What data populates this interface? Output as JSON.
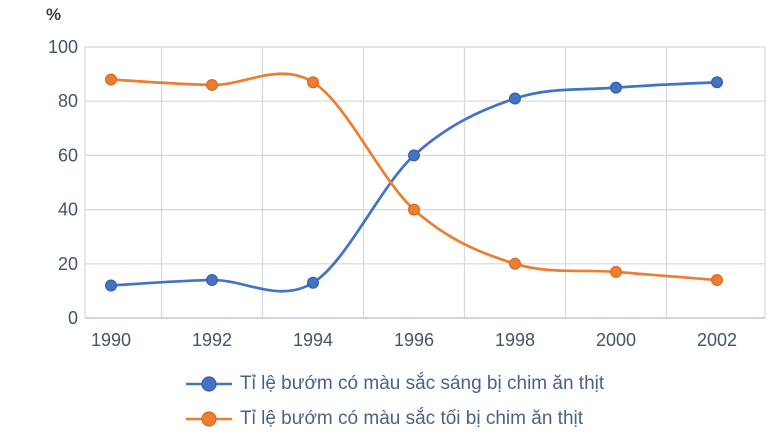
{
  "chart_data": {
    "type": "line",
    "title": "",
    "ylabel": "%",
    "xlabel": "",
    "categories": [
      "1990",
      "1992",
      "1994",
      "1996",
      "1998",
      "2000",
      "2002"
    ],
    "y_ticks": [
      0,
      20,
      40,
      60,
      80,
      100
    ],
    "ylim": [
      0,
      100
    ],
    "grid": true,
    "smooth": true,
    "markers": true,
    "legend_position": "bottom",
    "series": [
      {
        "name": "Tỉ lệ bướm có màu sắc sáng bị chim ăn thịt",
        "color": "#4472C4",
        "marker_stroke": "#3a5ea8",
        "values": [
          12,
          14,
          13,
          60,
          81,
          85,
          87
        ]
      },
      {
        "name": "Tỉ lệ bướm có màu sắc tối bị chim ăn thịt",
        "color": "#ED7D31",
        "marker_stroke": "#d96b1f",
        "values": [
          88,
          86,
          87,
          40,
          20,
          17,
          14
        ]
      }
    ],
    "colors": {
      "axis_text": "#44546A",
      "legend_text": "#4b6285",
      "grid": "#d5d8dd",
      "axis_line": "#c4c9d0",
      "ylabel_text": "#3d3d3d"
    }
  }
}
